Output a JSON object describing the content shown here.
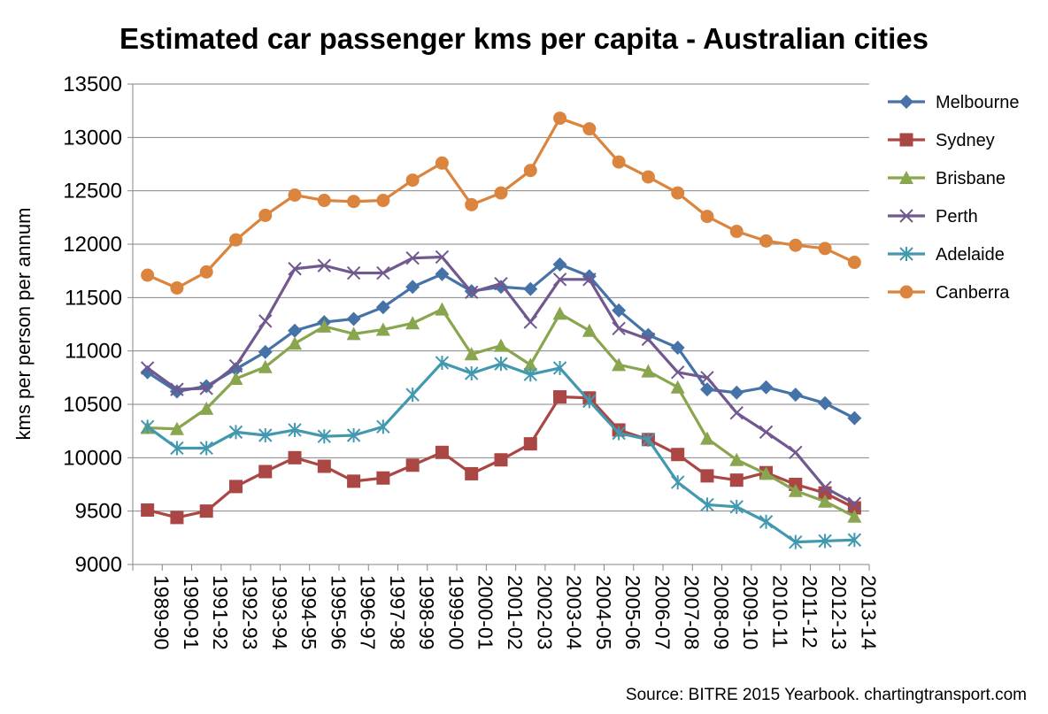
{
  "chart_data": {
    "type": "line",
    "title": "Estimated car passenger kms per capita - Australian cities",
    "xlabel": "",
    "ylabel": "kms per person per annum",
    "ylim": [
      9000,
      13500
    ],
    "yticks": [
      9000,
      9500,
      10000,
      10500,
      11000,
      11500,
      12000,
      12500,
      13000,
      13500
    ],
    "grid": "horizontal",
    "legend_position": "right",
    "source": "Source: BITRE 2015 Yearbook.  chartingtransport.com",
    "categories": [
      "1989-90",
      "1990-91",
      "1991-92",
      "1992-93",
      "1993-94",
      "1994-95",
      "1995-96",
      "1996-97",
      "1997-98",
      "1998-99",
      "1999-00",
      "2000-01",
      "2001-02",
      "2002-03",
      "2003-04",
      "2004-05",
      "2005-06",
      "2006-07",
      "2007-08",
      "2008-09",
      "2009-10",
      "2010-11",
      "2011-12",
      "2012-13",
      "2013-14"
    ],
    "series": [
      {
        "name": "Melbourne",
        "color": "#4572A7",
        "marker": "diamond",
        "values": [
          10800,
          10620,
          10670,
          10830,
          10990,
          11190,
          11270,
          11300,
          11410,
          11600,
          11720,
          11560,
          11600,
          11580,
          11810,
          11700,
          11380,
          11150,
          11030,
          10640,
          10610,
          10660,
          10590,
          10510,
          10370
        ]
      },
      {
        "name": "Sydney",
        "color": "#AA4643",
        "marker": "square",
        "values": [
          9510,
          9440,
          9500,
          9730,
          9870,
          10000,
          9920,
          9780,
          9810,
          9930,
          10050,
          9850,
          9980,
          10130,
          10570,
          10560,
          10260,
          10170,
          10030,
          9830,
          9790,
          9860,
          9750,
          9670,
          9530
        ]
      },
      {
        "name": "Brisbane",
        "color": "#89A54E",
        "marker": "triangle",
        "values": [
          10280,
          10270,
          10460,
          10740,
          10850,
          11070,
          11230,
          11160,
          11200,
          11260,
          11390,
          10970,
          11050,
          10870,
          11350,
          11190,
          10870,
          10810,
          10660,
          10180,
          9980,
          9850,
          9690,
          9590,
          9450
        ]
      },
      {
        "name": "Perth",
        "color": "#71588F",
        "marker": "x",
        "values": [
          10840,
          10640,
          10650,
          10860,
          11280,
          11770,
          11800,
          11730,
          11730,
          11870,
          11880,
          11550,
          11630,
          11270,
          11670,
          11670,
          11210,
          11110,
          10800,
          10750,
          10420,
          10240,
          10050,
          9720,
          9570
        ]
      },
      {
        "name": "Adelaide",
        "color": "#4198AF",
        "marker": "star",
        "values": [
          10290,
          10090,
          10090,
          10240,
          10210,
          10260,
          10200,
          10210,
          10290,
          10590,
          10890,
          10790,
          10880,
          10780,
          10840,
          10530,
          10230,
          10170,
          9770,
          9560,
          9540,
          9400,
          9210,
          9220,
          9230
        ]
      },
      {
        "name": "Canberra",
        "color": "#DB843D",
        "marker": "circle",
        "values": [
          11710,
          11590,
          11740,
          12040,
          12270,
          12460,
          12410,
          12400,
          12410,
          12600,
          12760,
          12370,
          12480,
          12690,
          13180,
          13080,
          12770,
          12630,
          12480,
          12260,
          12120,
          12030,
          11990,
          11960,
          11830
        ]
      }
    ]
  }
}
